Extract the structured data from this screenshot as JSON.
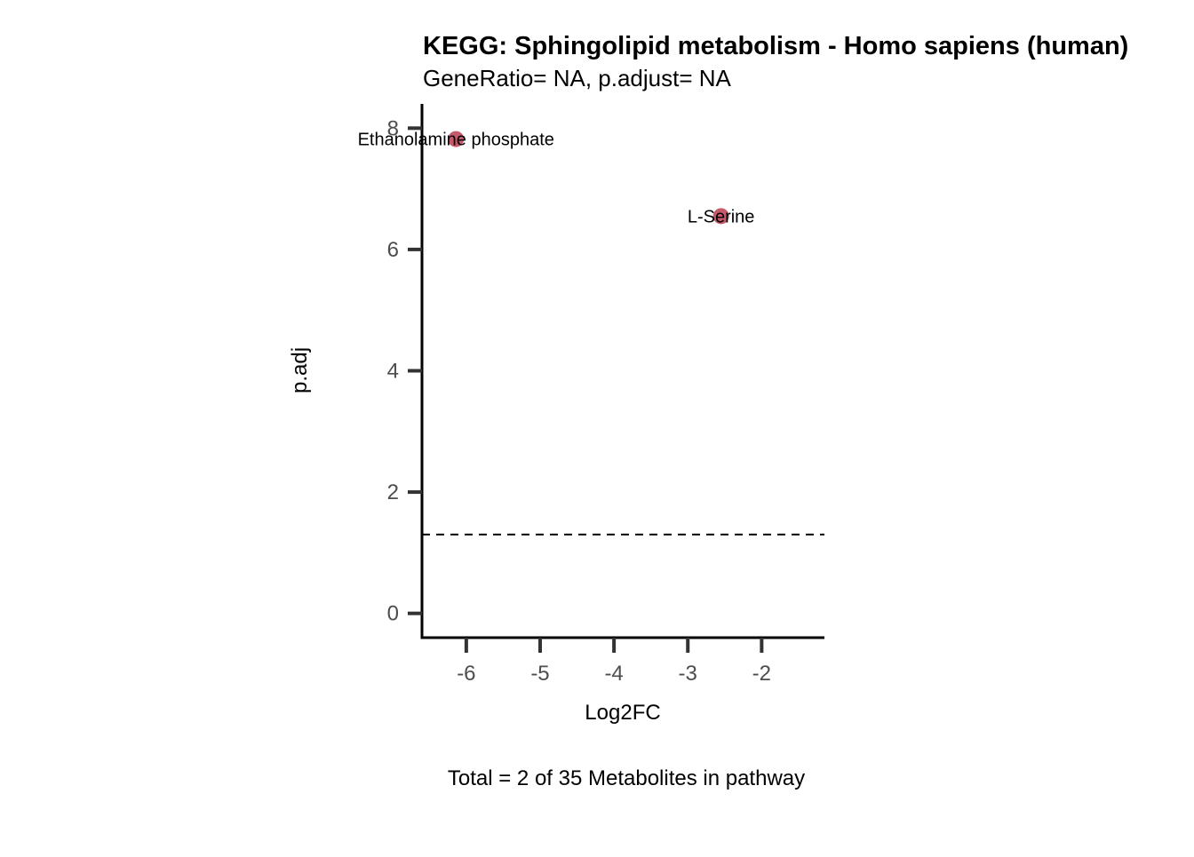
{
  "chart_data": {
    "type": "scatter",
    "title": "KEGG: Sphingolipid metabolism - Homo sapiens (human)",
    "subtitle": "GeneRatio= NA, p.adjust= NA",
    "xlabel": "Log2FC",
    "ylabel": "p.adj",
    "caption": "Total = 2 of 35 Metabolites in pathway",
    "xlim": [
      -6.6,
      -1.15
    ],
    "ylim": [
      -0.4,
      8.4
    ],
    "xticks": [
      -6,
      -5,
      -4,
      -3,
      -2
    ],
    "yticks": [
      0,
      2,
      4,
      6,
      8
    ],
    "threshold": {
      "y": 1.3,
      "style": "dashed"
    },
    "grid": false,
    "legend": "none",
    "point_color": "#c45a6a",
    "points": [
      {
        "x": -6.14,
        "y": 7.82,
        "label": "Ethanolamine phosphate"
      },
      {
        "x": -2.55,
        "y": 6.55,
        "label": "L-Serine"
      }
    ]
  }
}
